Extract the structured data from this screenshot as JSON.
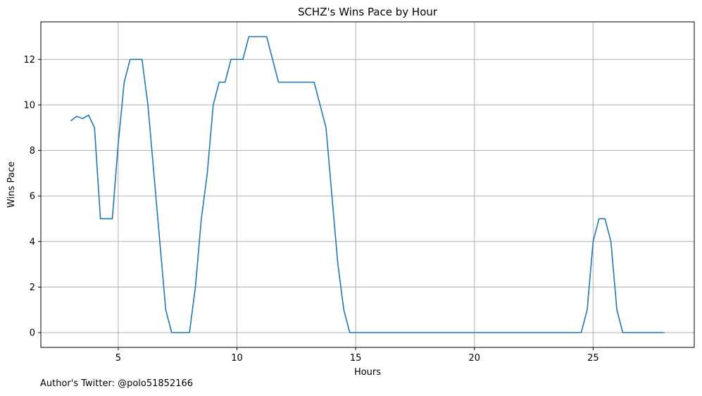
{
  "chart_data": {
    "type": "line",
    "title": "SCHZ's Wins Pace by Hour",
    "xlabel": "Hours",
    "ylabel": "Wins Pace",
    "xlim": [
      1.74,
      29.26
    ],
    "ylim": [
      -0.65,
      13.65
    ],
    "xticks": [
      5,
      10,
      15,
      20,
      25
    ],
    "yticks": [
      0,
      2,
      4,
      6,
      8,
      10,
      12
    ],
    "grid": true,
    "line_color": "#1f77b4",
    "series": [
      {
        "x": [
          3,
          3.25,
          3.5,
          3.75,
          4,
          4.25,
          4.5,
          4.75,
          5,
          5.25,
          5.5,
          5.75,
          6,
          6.25,
          6.5,
          6.75,
          7,
          7.25,
          7.5,
          7.75,
          8,
          8.25,
          8.5,
          8.75,
          9,
          9.25,
          9.5,
          9.75,
          10,
          10.25,
          10.5,
          10.75,
          11,
          11.25,
          11.5,
          11.75,
          12,
          12.25,
          12.5,
          12.75,
          13,
          13.25,
          13.5,
          13.75,
          14,
          14.25,
          14.5,
          14.75,
          15,
          24.5,
          24.75,
          25,
          25.25,
          25.5,
          25.75,
          26,
          26.25,
          28
        ],
        "values": [
          9.3,
          9.5,
          9.4,
          9.55,
          9,
          5,
          5,
          5,
          8.3,
          11,
          12,
          12,
          12,
          10,
          7,
          4,
          1,
          0,
          0,
          0,
          0,
          2,
          5,
          7,
          10,
          11,
          11,
          12,
          12,
          12,
          13,
          13,
          13,
          13,
          12,
          11,
          11,
          11,
          11,
          11,
          11,
          11,
          10,
          9,
          6,
          3,
          1,
          0,
          0,
          0,
          1,
          4,
          5,
          5,
          4,
          1,
          0,
          0
        ]
      }
    ]
  },
  "footer": {
    "text": "Author's Twitter: @polo51852166"
  }
}
